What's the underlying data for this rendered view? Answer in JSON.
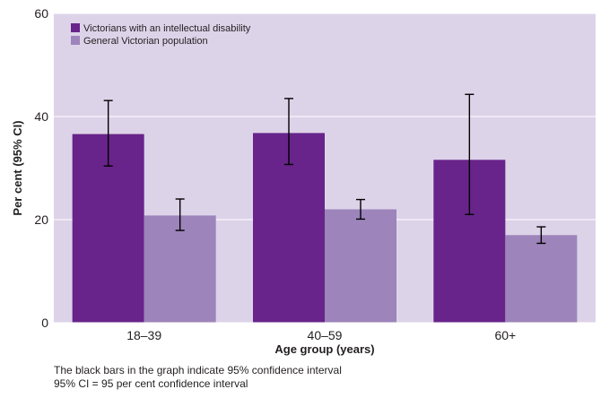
{
  "chart_data": {
    "type": "bar",
    "xlabel": "Age group (years)",
    "ylabel": "Per cent (95% CI)",
    "ylim": [
      0,
      60
    ],
    "yticks": [
      0,
      20,
      40,
      60
    ],
    "grid": true,
    "legend_position": "top-left",
    "categories": [
      "18–39",
      "40–59",
      "60+"
    ],
    "series": [
      {
        "name": "Victorians with an intellectual disability",
        "color": "#68248a",
        "values": [
          36.6,
          36.8,
          31.6
        ],
        "ci_low": [
          30.4,
          30.7,
          21.0
        ],
        "ci_high": [
          43.1,
          43.5,
          44.3
        ]
      },
      {
        "name": "General Victorian population",
        "color": "#9d84ba",
        "values": [
          20.8,
          22.0,
          17.0
        ],
        "ci_low": [
          17.9,
          20.1,
          15.4
        ],
        "ci_high": [
          24.0,
          23.9,
          18.6
        ]
      }
    ],
    "plot_background": "#ddd3e9",
    "gridline_color": "#ffffff",
    "error_bar_color": "#000000"
  },
  "footnotes": [
    "The black bars in the graph indicate 95% confidence interval",
    "95% CI = 95 per cent confidence interval"
  ]
}
